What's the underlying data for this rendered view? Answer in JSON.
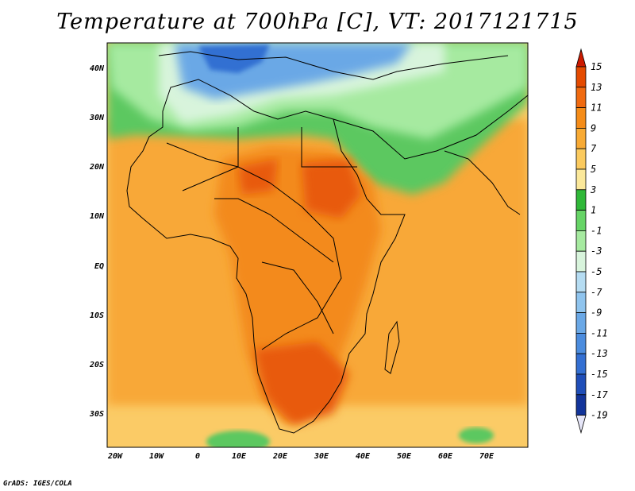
{
  "title": "Temperature at 700hPa [C], VT: 2017121715",
  "credit": "GrADS: IGES/COLA",
  "lon_labels": [
    "20W",
    "10W",
    "0",
    "10E",
    "20E",
    "30E",
    "40E",
    "50E",
    "60E",
    "70E"
  ],
  "lat_labels": [
    "40N",
    "30N",
    "20N",
    "10N",
    "EQ",
    "10S",
    "20S",
    "30S"
  ],
  "colorbar": {
    "labels": [
      "15",
      "13",
      "11",
      "9",
      "7",
      "5",
      "3",
      "1",
      "-1",
      "-3",
      "-5",
      "-7",
      "-9",
      "-11",
      "-13",
      "-15",
      "-17",
      "-19"
    ],
    "colors": [
      "#cc1a00",
      "#e44a00",
      "#f06a10",
      "#f58c18",
      "#f8aa34",
      "#fbca5e",
      "#fbe89a",
      "#2fb838",
      "#66d466",
      "#a6eaa0",
      "#d8f4dc",
      "#b5dcf2",
      "#8fc4ee",
      "#6aa8e6",
      "#4b8cde",
      "#336fd2",
      "#1f4eb8",
      "#12349a",
      "#0c1f78"
    ]
  },
  "map_colors": {
    "ocean_south": "#fbcb66",
    "tropics": "#f8a838",
    "land_hot": "#f38a1e",
    "land_very_hot": "#e85a10",
    "green_cool": "#5cc860",
    "light_green": "#a6eaa0",
    "pale": "#d8f4dc",
    "blue": "#6aa8e6",
    "deep_blue": "#336fd2"
  }
}
